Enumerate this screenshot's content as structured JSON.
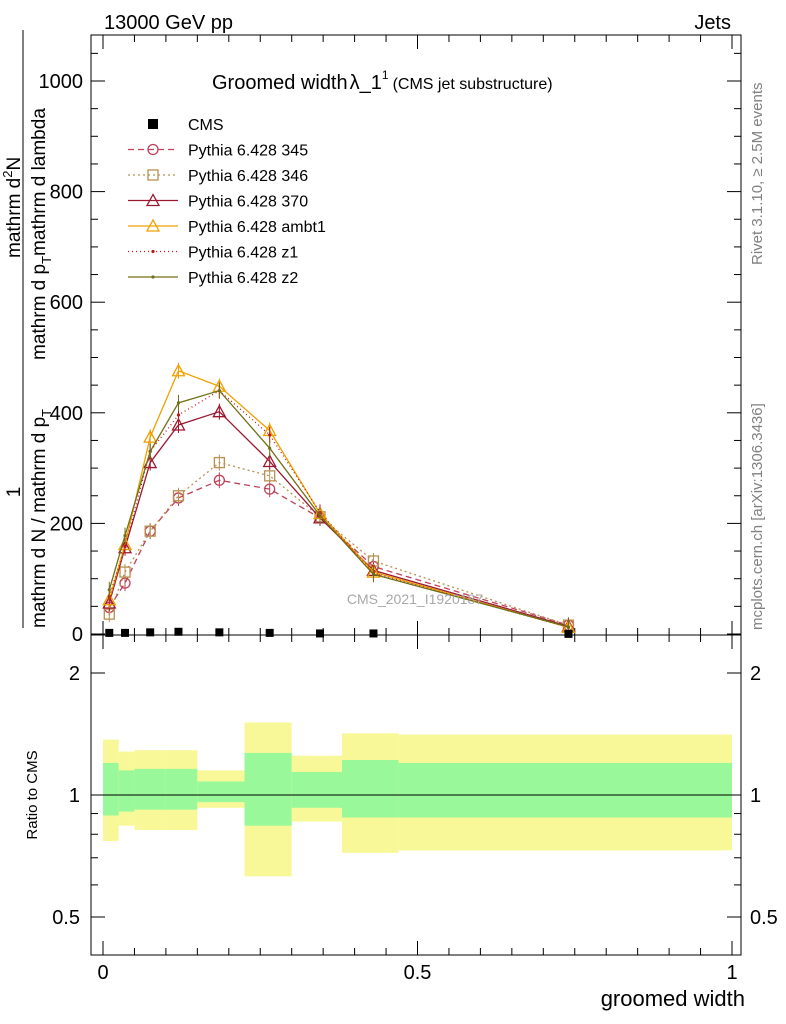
{
  "header": {
    "left": "13000 GeV pp",
    "right": "Jets"
  },
  "side": {
    "rivet": "Rivet 3.1.10, ≥ 2.5M events",
    "mcplots": "mcplots.cern.ch [arXiv:1306.3436]"
  },
  "watermark": "CMS_2021_I1920187",
  "chart_data": {
    "type": "line",
    "title_main": "Groomed width",
    "title_lambda": "λ_1",
    "title_sup": "1",
    "title_sub": "(CMS jet substructure)",
    "xlabel": "groomed width",
    "ylabel_main": {
      "one": "1",
      "den": "mathrm d N / mathrm d p",
      "den_sub": "T",
      "num_a": "mathrm d",
      "num_sup": "2",
      "num_b": "N",
      "den2_a": "mathrm d p",
      "den2_sub": "T",
      "den2_b": "mathrm d lambda"
    },
    "ylabel_ratio": "Ratio to CMS",
    "xlim": [
      0,
      1
    ],
    "ylim_main": [
      0,
      1000
    ],
    "ylim_ratio": [
      0.4,
      2.4
    ],
    "x_ticks": [
      "0",
      "0.5",
      "1"
    ],
    "y_ticks_main": [
      "0",
      "200",
      "400",
      "600",
      "800",
      "1000"
    ],
    "y_ticks_ratio": [
      "0.5",
      "1",
      "2"
    ],
    "x": [
      0.01,
      0.035,
      0.075,
      0.12,
      0.185,
      0.265,
      0.345,
      0.43,
      0.74
    ],
    "cms_values": [
      2.0,
      2.0,
      3.0,
      4.0,
      3.0,
      2.0,
      1.0,
      1.0,
      0.2
    ],
    "bins": [
      0.0,
      0.025,
      0.05,
      0.1,
      0.15,
      0.225,
      0.3,
      0.38,
      0.47,
      1.0
    ],
    "ratio_band_inner": [
      [
        0.89,
        1.2
      ],
      [
        0.91,
        1.15
      ],
      [
        0.92,
        1.16
      ],
      [
        0.92,
        1.16
      ],
      [
        0.96,
        1.08
      ],
      [
        0.84,
        1.27
      ],
      [
        0.93,
        1.14
      ],
      [
        0.88,
        1.22
      ],
      [
        0.88,
        1.2
      ]
    ],
    "ratio_band_outer": [
      [
        0.77,
        1.37
      ],
      [
        0.84,
        1.28
      ],
      [
        0.82,
        1.29
      ],
      [
        0.82,
        1.29
      ],
      [
        0.93,
        1.15
      ],
      [
        0.63,
        1.51
      ],
      [
        0.86,
        1.25
      ],
      [
        0.72,
        1.42
      ],
      [
        0.73,
        1.41
      ]
    ],
    "series": [
      {
        "name": "Pythia 6.428 345",
        "color": "#c0405a",
        "dash": "6,4",
        "marker": "circle",
        "values": [
          48,
          92,
          186,
          246,
          278,
          262,
          210,
          122,
          16
        ]
      },
      {
        "name": "Pythia 6.428 346",
        "color": "#b89050",
        "dash": "2,3",
        "marker": "square",
        "values": [
          36,
          112,
          186,
          250,
          310,
          286,
          212,
          132,
          16
        ]
      },
      {
        "name": "Pythia 6.428 370",
        "color": "#9a1830",
        "dash": "",
        "marker": "triangle",
        "values": [
          56,
          156,
          310,
          378,
          402,
          312,
          210,
          115,
          14
        ]
      },
      {
        "name": "Pythia 6.428 ambt1",
        "color": "#f0a000",
        "dash": "",
        "marker": "triangle",
        "values": [
          62,
          162,
          356,
          476,
          448,
          368,
          218,
          112,
          12
        ]
      },
      {
        "name": "Pythia 6.428 z1",
        "color": "#c01818",
        "dash": "1,3",
        "marker": "dot",
        "values": [
          68,
          158,
          330,
          396,
          440,
          360,
          220,
          110,
          12
        ]
      },
      {
        "name": "Pythia 6.428 z2",
        "color": "#707018",
        "dash": "",
        "marker": "dot",
        "values": [
          80,
          178,
          330,
          418,
          440,
          336,
          214,
          108,
          13
        ]
      }
    ],
    "legend_cms": "CMS",
    "legend_placement": "top-left",
    "colors": {
      "inner_band": "#99f899",
      "outer_band": "#f8f898",
      "cms": "#000000"
    }
  }
}
